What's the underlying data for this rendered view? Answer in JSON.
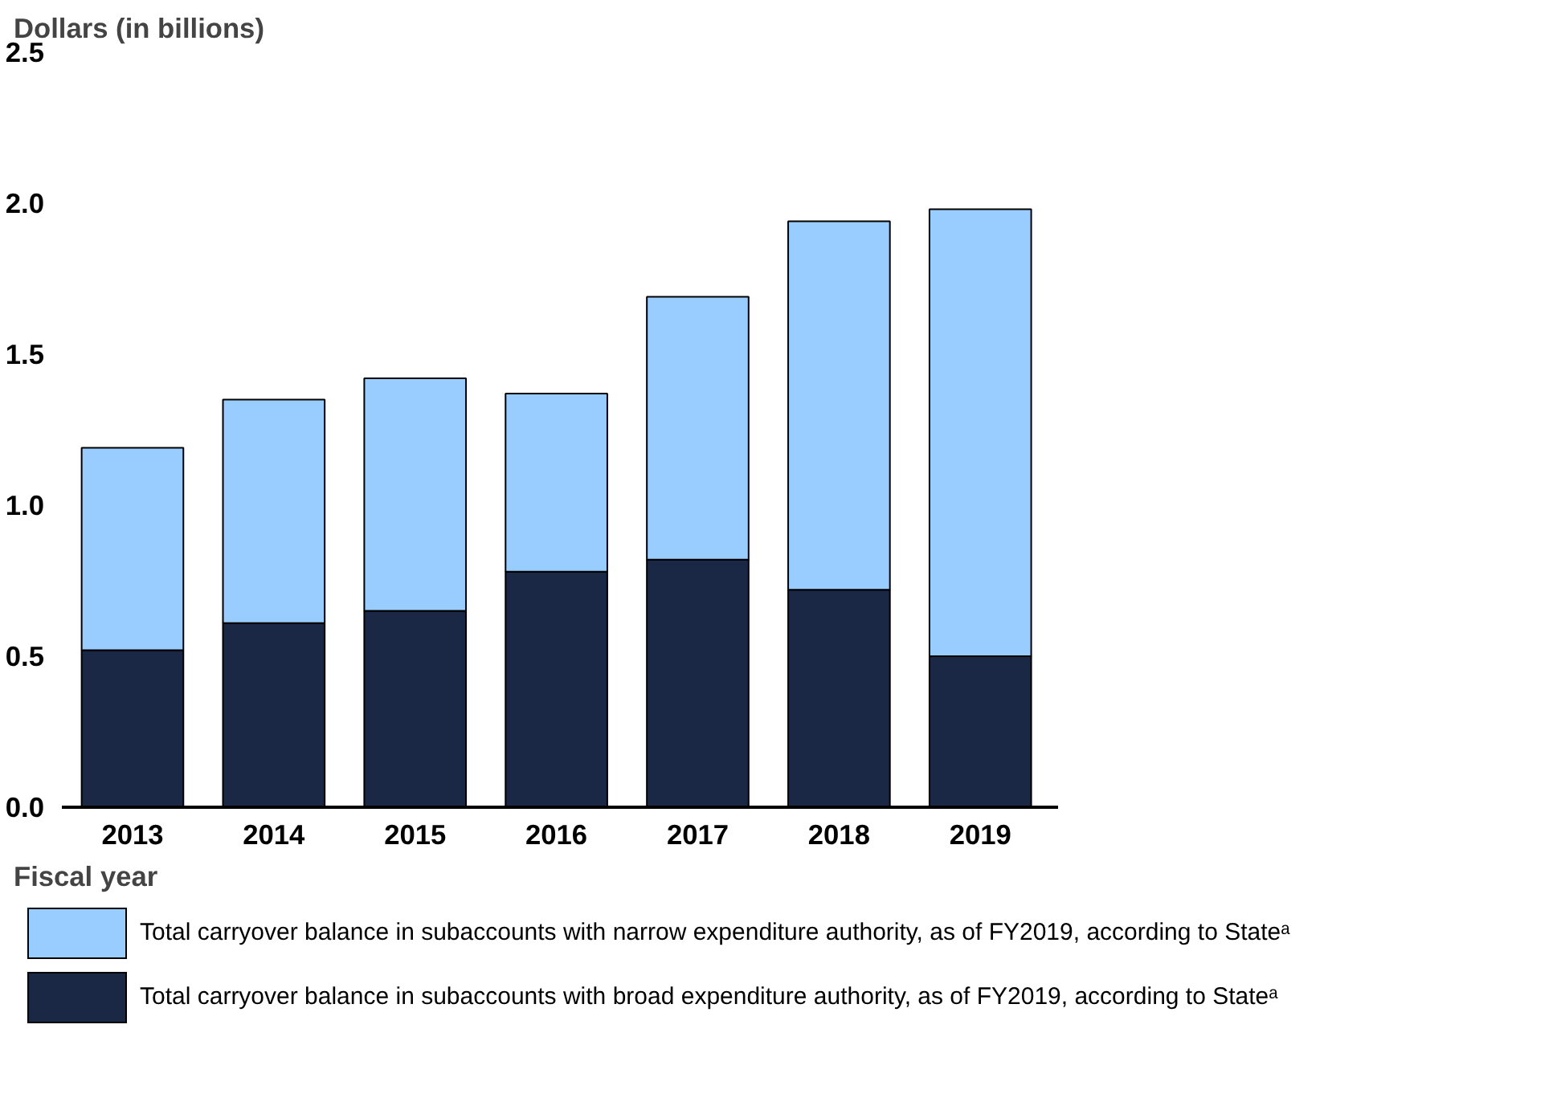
{
  "chart_data": {
    "type": "bar",
    "stacked": true,
    "ylabel": "Dollars (in billions)",
    "xlabel": "Fiscal year",
    "categories": [
      "2013",
      "2014",
      "2015",
      "2016",
      "2017",
      "2018",
      "2019"
    ],
    "series": [
      {
        "name": "Total carryover balance in subaccounts with broad expenditure authority, as of FY2019, according to Stateᵃ",
        "color": "#1a2745",
        "values": [
          0.52,
          0.61,
          0.65,
          0.78,
          0.82,
          0.72,
          0.5
        ]
      },
      {
        "name": "Total carryover balance in subaccounts with narrow expenditure authority, as of FY2019, according to Stateᵃ",
        "color": "#99ccff",
        "values": [
          0.67,
          0.74,
          0.77,
          0.59,
          0.87,
          1.22,
          1.48
        ]
      }
    ],
    "ylim": [
      0,
      2.5
    ],
    "yticks": [
      {
        "value": 0,
        "label": "0.0"
      },
      {
        "value": 0.5,
        "label": "0.5"
      },
      {
        "value": 1,
        "label": "1.0"
      },
      {
        "value": 1.5,
        "label": "1.5"
      },
      {
        "value": 2,
        "label": "2.0"
      },
      {
        "value": 2.5,
        "label": "2.5"
      }
    ],
    "grid": false,
    "legend": "bottom"
  }
}
